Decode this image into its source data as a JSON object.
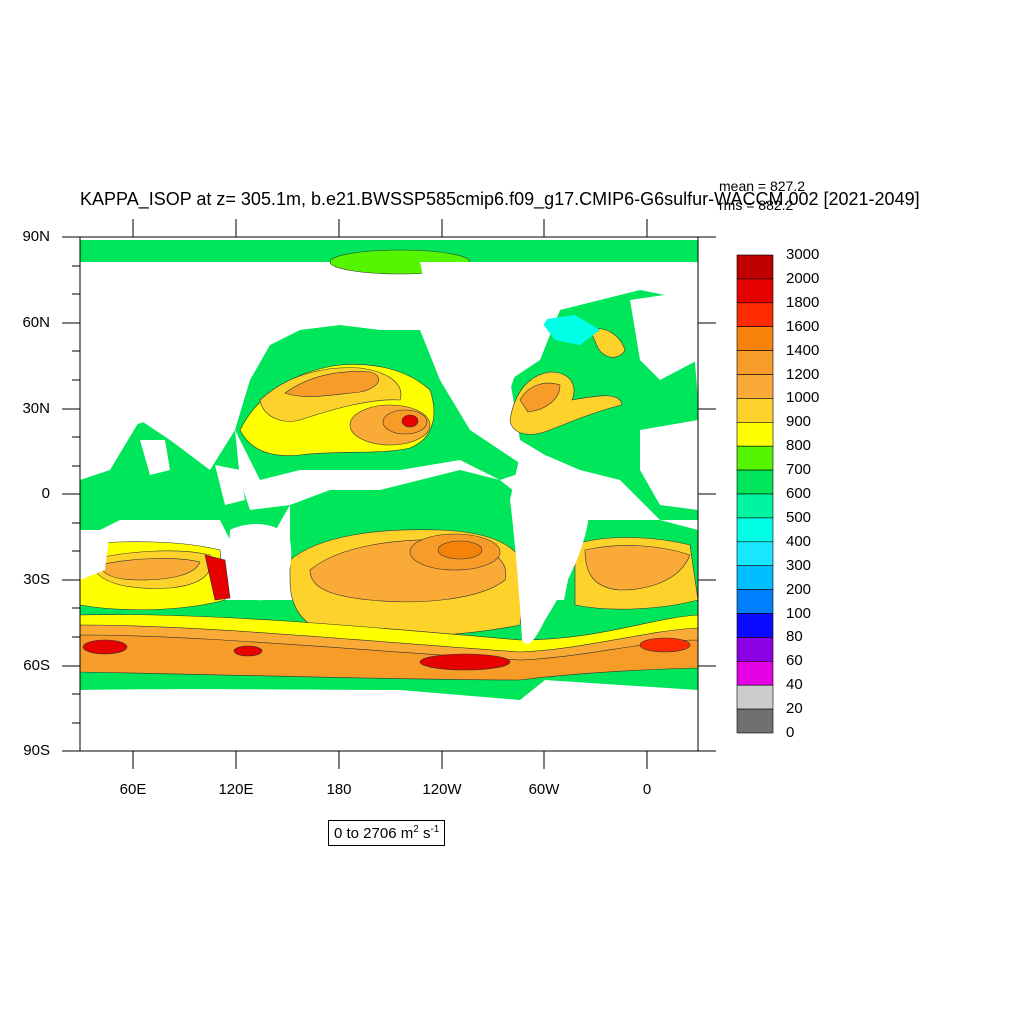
{
  "title": "KAPPA_ISOP at z= 305.1m, b.e21.BWSSP585cmip6.f09_g17.CMIP6-G6sulfur-WACCM.002 [2021-2049]",
  "stats": {
    "mean": "mean = 827.2",
    "rms": "rms = 882.2"
  },
  "lat_labels": [
    "90N",
    "60N",
    "30N",
    "0",
    "30S",
    "60S",
    "90S"
  ],
  "lon_labels": [
    "60E",
    "120E",
    "180",
    "120W",
    "60W",
    "0"
  ],
  "range": {
    "prefix": "0 to 2706 m",
    "exp1": "2",
    "mid": " s",
    "exp2": "-1"
  },
  "colorbar": {
    "labels": [
      "3000",
      "2000",
      "1800",
      "1600",
      "1400",
      "1200",
      "1000",
      "900",
      "800",
      "700",
      "600",
      "500",
      "400",
      "300",
      "200",
      "100",
      "80",
      "60",
      "40",
      "20",
      "0"
    ],
    "colors": [
      "#c00000",
      "#e60000",
      "#ff2a00",
      "#f5820a",
      "#f79c28",
      "#faaa37",
      "#fdd22a",
      "#ffff00",
      "#55f500",
      "#00e65a",
      "#00f5a0",
      "#00ffe6",
      "#19e6ff",
      "#00beff",
      "#0080ff",
      "#0a0aff",
      "#8c00e6",
      "#e600e6",
      "#cccccc",
      "#707070"
    ]
  },
  "map_data": {
    "projection": "cylindrical equidistant",
    "lon_range": [
      30,
      390
    ],
    "lat_range": [
      -90,
      90
    ],
    "units": "m2 s-1"
  }
}
